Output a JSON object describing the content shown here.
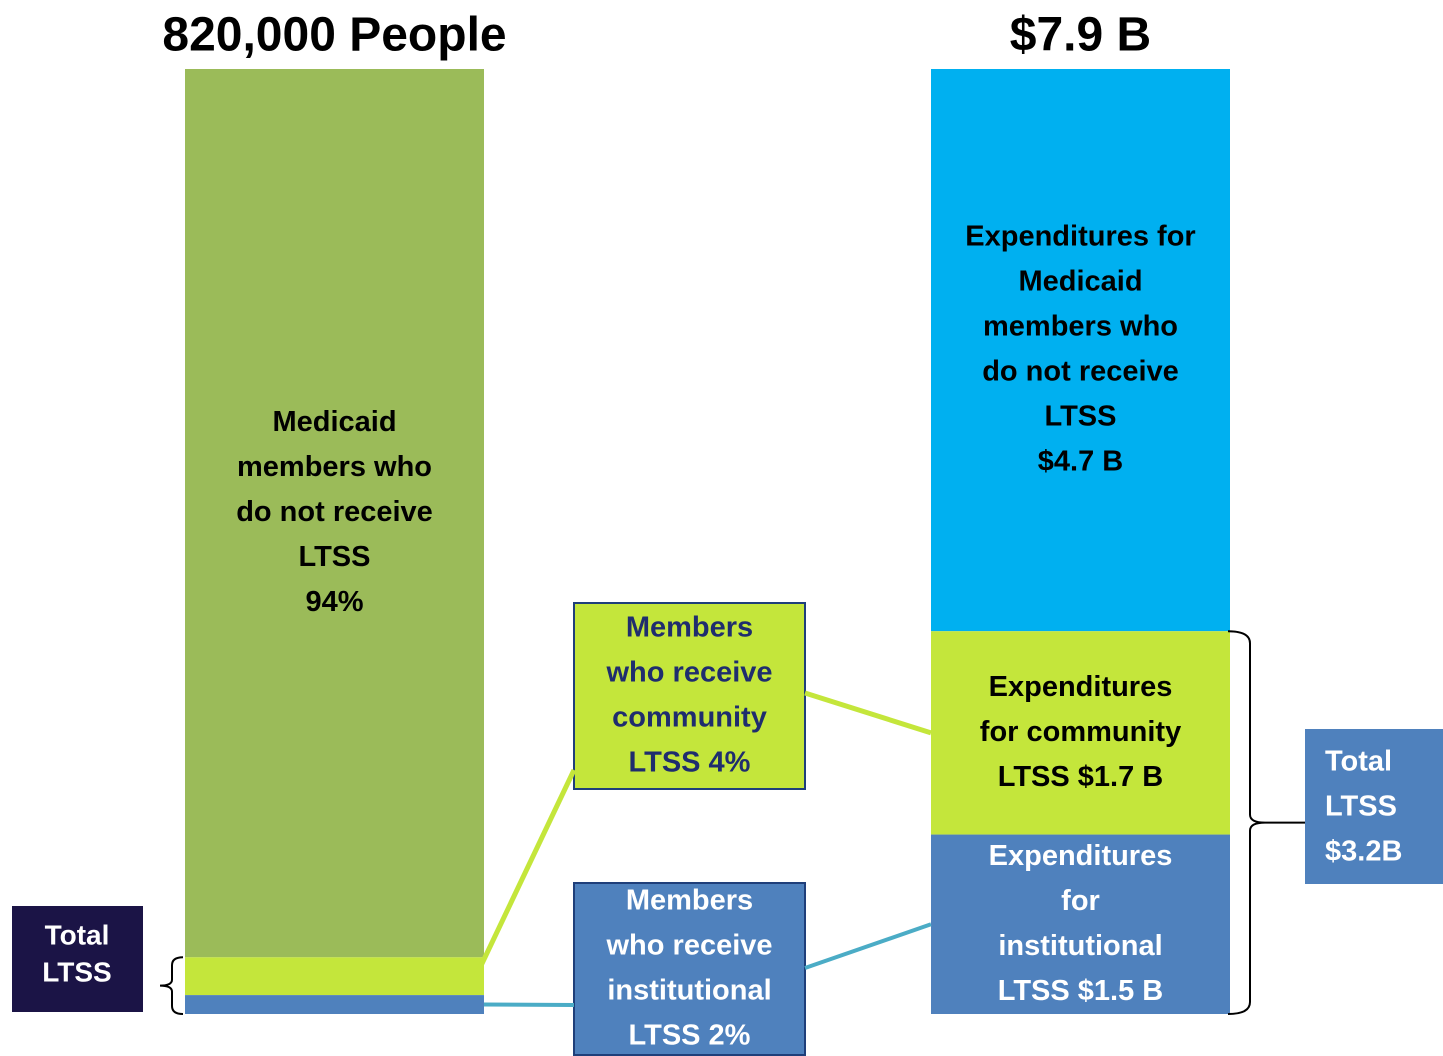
{
  "chart_data": [
    {
      "type": "stacked-bar",
      "title": "820,000 People",
      "ylim": [
        0,
        100
      ],
      "segments": [
        {
          "label_lines": [
            "Medicaid",
            "members who",
            "do not receive",
            "LTSS"
          ],
          "value": 94,
          "value_label": "94%",
          "inline_value": false,
          "color": "#9bbb59",
          "text_color": "#000000",
          "callout": false
        },
        {
          "label_lines": [
            "Members",
            "who receive",
            "community",
            "LTSS"
          ],
          "value": 4,
          "value_label": "4%",
          "inline_value": true,
          "color": "#c4e63b",
          "text_color": "#1f2d6e",
          "callout": true
        },
        {
          "label_lines": [
            "Members",
            "who receive",
            "institutional",
            "LTSS"
          ],
          "value": 2,
          "value_label": "2%",
          "inline_value": true,
          "color": "#4f81bd",
          "text_color": "#ffffff",
          "callout": true
        }
      ],
      "total": {
        "label_lines": [
          "Total",
          "LTSS"
        ],
        "color": "#1b1446"
      }
    },
    {
      "type": "stacked-bar",
      "title": "$7.9 B",
      "ylim": [
        0,
        7.9
      ],
      "segments": [
        {
          "label_lines": [
            "Expenditures for",
            "Medicaid",
            "members who",
            "do not receive",
            "LTSS"
          ],
          "value": 4.7,
          "value_label": "$4.7 B",
          "inline_value": false,
          "color": "#00b0f0",
          "text_color": "#000000",
          "callout": false
        },
        {
          "label_lines": [
            "Expenditures",
            "for community",
            "LTSS"
          ],
          "value": 1.7,
          "value_label": "$1.7 B",
          "inline_value": true,
          "color": "#c4e63b",
          "text_color": "#000000",
          "callout": false
        },
        {
          "label_lines": [
            "Expenditures",
            "for",
            "institutional",
            "LTSS"
          ],
          "value": 1.5,
          "value_label": "$1.5 B",
          "inline_value": true,
          "color": "#4f81bd",
          "text_color": "#ffffff",
          "callout": false
        }
      ],
      "total": {
        "label_lines": [
          "Total",
          "LTSS"
        ],
        "value": 3.2,
        "value_label": "$3.2B",
        "color": "#4f81bd"
      }
    }
  ]
}
